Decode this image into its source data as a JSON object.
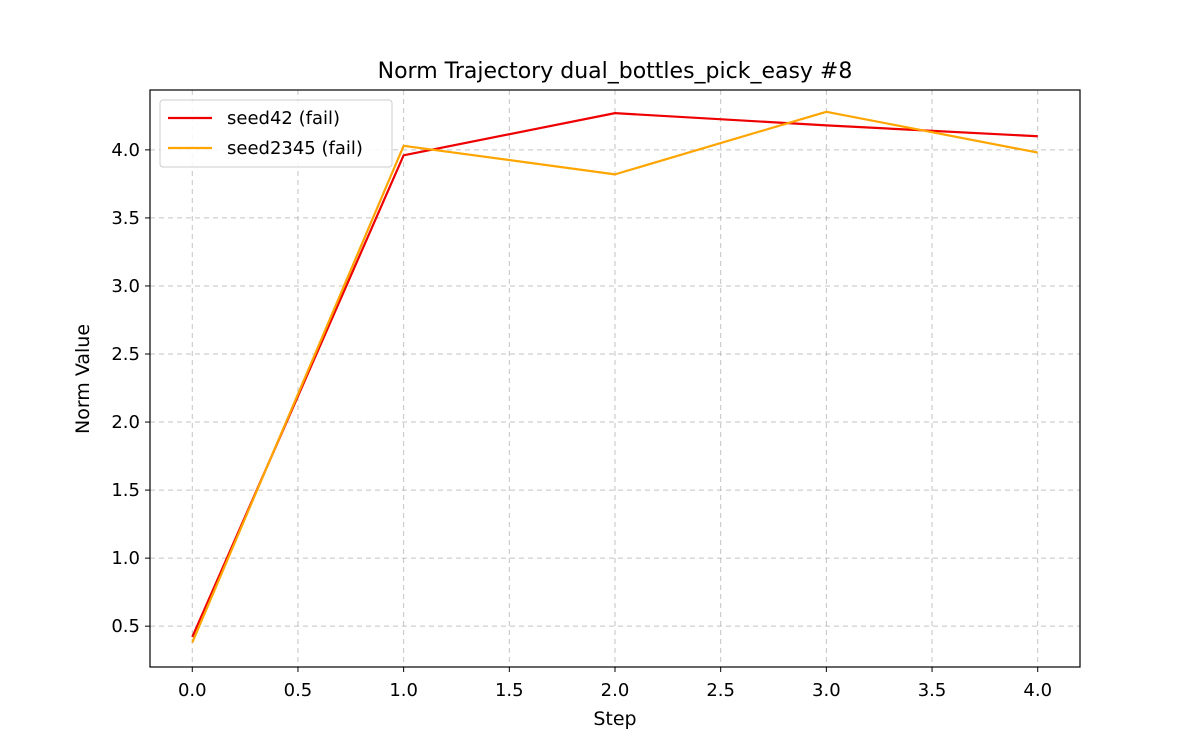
{
  "chart_data": {
    "type": "line",
    "title": "Norm Trajectory dual_bottles_pick_easy #8",
    "xlabel": "Step",
    "ylabel": "Norm Value",
    "xlim": [
      -0.2,
      4.2
    ],
    "ylim": [
      0.2,
      4.44
    ],
    "xticks": [
      "0.0",
      "0.5",
      "1.0",
      "1.5",
      "2.0",
      "2.5",
      "3.0",
      "3.5",
      "4.0"
    ],
    "yticks": [
      "0.5",
      "1.0",
      "1.5",
      "2.0",
      "2.5",
      "3.0",
      "3.5",
      "4.0"
    ],
    "grid": true,
    "legend_position": "upper-left",
    "x": [
      0,
      1,
      2,
      3,
      4
    ],
    "series": [
      {
        "name": "seed42 (fail)",
        "color": "#ee0000",
        "values": [
          0.42,
          3.96,
          4.27,
          4.18,
          4.1
        ]
      },
      {
        "name": "seed2345 (fail)",
        "color": "#ffa500",
        "values": [
          0.38,
          4.03,
          3.82,
          4.28,
          3.98
        ]
      }
    ]
  }
}
